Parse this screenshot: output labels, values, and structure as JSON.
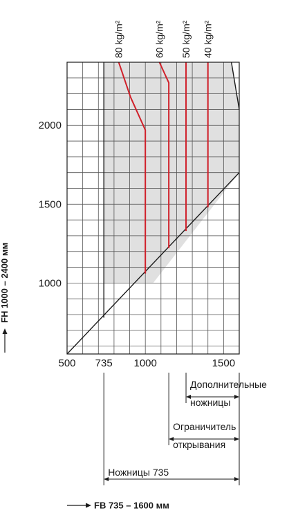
{
  "chart_data": {
    "type": "line",
    "title": "",
    "xlabel": "FB 735 – 1600 мм",
    "ylabel": "FH 1000 – 2400 мм",
    "xlim": [
      500,
      1600
    ],
    "ylim": [
      550,
      2400
    ],
    "x_ticks": [
      500,
      735,
      1000,
      1500
    ],
    "y_ticks": [
      1000,
      1500,
      2000
    ],
    "grid": true,
    "grid_step_x": 100,
    "grid_step_y": 100,
    "permissible_area": {
      "color": "#e0e0e0",
      "points": [
        [
          735,
          1000
        ],
        [
          735,
          2400
        ],
        [
          1550,
          2400
        ],
        [
          1600,
          2100
        ],
        [
          1600,
          1700
        ],
        [
          1050,
          1000
        ]
      ]
    },
    "boundaries": [
      {
        "name": "",
        "color": "#1a1a1a",
        "x": [
          500,
          1600
        ],
        "y": [
          550,
          1700
        ]
      },
      {
        "name": "",
        "color": "#1a1a1a",
        "x": [
          735,
          735
        ],
        "y": [
          780,
          2400
        ]
      },
      {
        "name": "",
        "color": "#1a1a1a",
        "x": [
          1550,
          1600
        ],
        "y": [
          2400,
          2100
        ]
      }
    ],
    "series": [
      {
        "name": "80 kg/m²",
        "color": "#d0202a",
        "x": [
          830,
          905,
          1000,
          1000
        ],
        "y": [
          2400,
          2180,
          1970,
          1060
        ]
      },
      {
        "name": "60 kg/m²",
        "color": "#d0202a",
        "x": [
          1090,
          1150,
          1150
        ],
        "y": [
          2400,
          2270,
          1220
        ]
      },
      {
        "name": "50 kg/m²",
        "color": "#d0202a",
        "x": [
          1260,
          1260
        ],
        "y": [
          2400,
          1330
        ]
      },
      {
        "name": "40 kg/m²",
        "color": "#d0202a",
        "x": [
          1400,
          1400
        ],
        "y": [
          2400,
          1480
        ]
      }
    ],
    "ranges": [
      {
        "label_lines": [
          "Дополнительные",
          "ножницы"
        ],
        "from": 1260,
        "to": 1600
      },
      {
        "label_lines": [
          "Ограничитель",
          "открывания"
        ],
        "from": 1150,
        "to": 1600
      },
      {
        "label_lines": [
          "Ножницы  735"
        ],
        "from": 735,
        "to": 1600
      }
    ]
  }
}
